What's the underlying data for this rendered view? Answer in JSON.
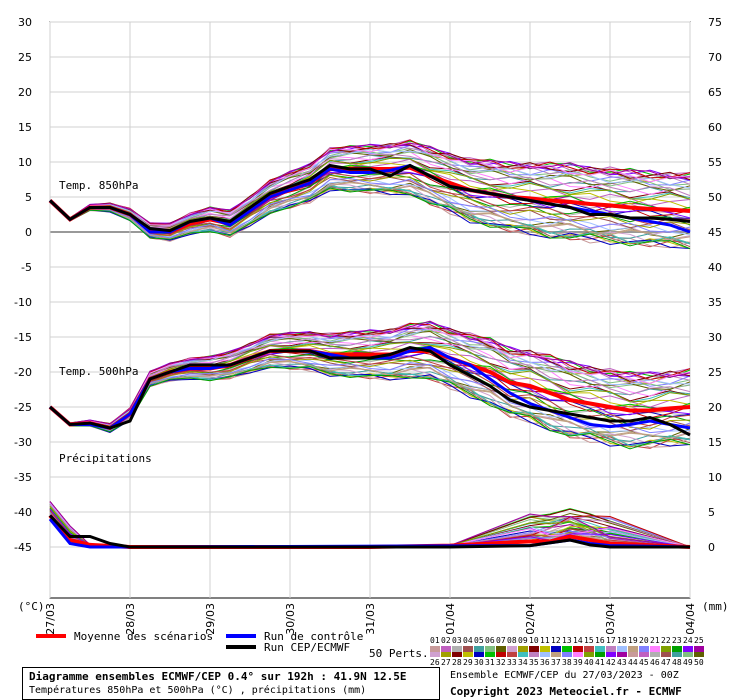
{
  "chart_data": {
    "type": "line",
    "left_axis": {
      "unit": "(°C)",
      "ticks": [
        30,
        25,
        20,
        15,
        10,
        5,
        0,
        -5,
        -10,
        -15,
        -20,
        -25,
        -30,
        -35,
        -40,
        -45
      ],
      "range": [
        -45,
        30
      ]
    },
    "right_axis": {
      "unit": "(mm)",
      "ticks": [
        75,
        70,
        65,
        60,
        55,
        50,
        45,
        40,
        35,
        30,
        25,
        20,
        15,
        10,
        5,
        0
      ]
    },
    "x_labels": [
      "27/03",
      "28/03",
      "29/03",
      "30/03",
      "31/03",
      "01/04",
      "02/04",
      "03/04",
      "04/04"
    ],
    "x_hours": [
      0,
      24,
      48,
      72,
      96,
      120,
      144,
      168,
      192
    ],
    "section_labels": [
      "Temp. 850hPa",
      "Temp. 500hPa",
      "Précipitations"
    ],
    "series": [
      {
        "name": "Moyenne des scénarios",
        "color": "#ff0000",
        "t850": [
          [
            0,
            4.5
          ],
          [
            6,
            1.8
          ],
          [
            12,
            3.5
          ],
          [
            18,
            3.5
          ],
          [
            24,
            2.5
          ],
          [
            30,
            0.2
          ],
          [
            36,
            0
          ],
          [
            42,
            1.2
          ],
          [
            48,
            1.8
          ],
          [
            54,
            1.2
          ],
          [
            60,
            3
          ],
          [
            66,
            5
          ],
          [
            72,
            6
          ],
          [
            78,
            7
          ],
          [
            84,
            9
          ],
          [
            90,
            9
          ],
          [
            96,
            9
          ],
          [
            102,
            9
          ],
          [
            108,
            9.2
          ],
          [
            114,
            8
          ],
          [
            120,
            7
          ],
          [
            126,
            6
          ],
          [
            132,
            5.5
          ],
          [
            138,
            5
          ],
          [
            144,
            4.8
          ],
          [
            150,
            4.5
          ],
          [
            156,
            4.3
          ],
          [
            162,
            4
          ],
          [
            168,
            3.8
          ],
          [
            174,
            3.5
          ],
          [
            180,
            3.3
          ],
          [
            186,
            3.2
          ],
          [
            192,
            3
          ]
        ],
        "t500": [
          [
            0,
            -25
          ],
          [
            6,
            -27.5
          ],
          [
            12,
            -27.3
          ],
          [
            18,
            -28
          ],
          [
            24,
            -26
          ],
          [
            30,
            -21
          ],
          [
            36,
            -20
          ],
          [
            42,
            -19.5
          ],
          [
            48,
            -19.5
          ],
          [
            54,
            -19
          ],
          [
            60,
            -18
          ],
          [
            66,
            -17
          ],
          [
            72,
            -17
          ],
          [
            78,
            -17
          ],
          [
            84,
            -17.5
          ],
          [
            90,
            -17.5
          ],
          [
            96,
            -17.5
          ],
          [
            102,
            -17.5
          ],
          [
            108,
            -17
          ],
          [
            114,
            -17
          ],
          [
            120,
            -18
          ],
          [
            126,
            -19
          ],
          [
            132,
            -20
          ],
          [
            138,
            -21.5
          ],
          [
            144,
            -22
          ],
          [
            150,
            -23
          ],
          [
            156,
            -24
          ],
          [
            162,
            -24.5
          ],
          [
            168,
            -25
          ],
          [
            174,
            -25.5
          ],
          [
            180,
            -25.5
          ],
          [
            186,
            -25.2
          ],
          [
            192,
            -25
          ]
        ],
        "precip": [
          [
            0,
            4.5
          ],
          [
            6,
            1
          ],
          [
            12,
            0.3
          ],
          [
            24,
            0
          ],
          [
            48,
            0
          ],
          [
            96,
            0
          ],
          [
            120,
            0.2
          ],
          [
            144,
            0.8
          ],
          [
            150,
            0.8
          ],
          [
            156,
            1.5
          ],
          [
            162,
            1
          ],
          [
            168,
            0.5
          ],
          [
            192,
            0
          ]
        ]
      },
      {
        "name": "Run de contrôle",
        "color": "#0000ff",
        "t850": [
          [
            0,
            4.5
          ],
          [
            6,
            1.8
          ],
          [
            12,
            3.5
          ],
          [
            18,
            3.5
          ],
          [
            24,
            2.5
          ],
          [
            30,
            0
          ],
          [
            36,
            0
          ],
          [
            42,
            1.5
          ],
          [
            48,
            2
          ],
          [
            54,
            1
          ],
          [
            60,
            3
          ],
          [
            66,
            5
          ],
          [
            72,
            6
          ],
          [
            78,
            7
          ],
          [
            84,
            9
          ],
          [
            90,
            8.5
          ],
          [
            96,
            8.5
          ],
          [
            102,
            8.8
          ],
          [
            108,
            9.5
          ],
          [
            114,
            8
          ],
          [
            120,
            6.5
          ],
          [
            126,
            6
          ],
          [
            132,
            5.5
          ],
          [
            138,
            5
          ],
          [
            144,
            4.5
          ],
          [
            150,
            4
          ],
          [
            156,
            3.5
          ],
          [
            162,
            3
          ],
          [
            168,
            2.5
          ],
          [
            174,
            2
          ],
          [
            180,
            1.5
          ],
          [
            186,
            1
          ],
          [
            192,
            0
          ]
        ],
        "t500": [
          [
            0,
            -25
          ],
          [
            6,
            -27.5
          ],
          [
            12,
            -27.5
          ],
          [
            18,
            -28
          ],
          [
            24,
            -26
          ],
          [
            30,
            -21
          ],
          [
            36,
            -20
          ],
          [
            42,
            -19.5
          ],
          [
            48,
            -19.5
          ],
          [
            54,
            -19
          ],
          [
            60,
            -18
          ],
          [
            66,
            -17
          ],
          [
            72,
            -17
          ],
          [
            78,
            -17
          ],
          [
            84,
            -17.5
          ],
          [
            90,
            -18
          ],
          [
            96,
            -18
          ],
          [
            102,
            -18
          ],
          [
            108,
            -17
          ],
          [
            114,
            -16.5
          ],
          [
            120,
            -18
          ],
          [
            126,
            -19
          ],
          [
            132,
            -21
          ],
          [
            138,
            -23
          ],
          [
            144,
            -24.5
          ],
          [
            150,
            -25.5
          ],
          [
            156,
            -26.5
          ],
          [
            162,
            -27.5
          ],
          [
            168,
            -27.8
          ],
          [
            174,
            -27.5
          ],
          [
            180,
            -27
          ],
          [
            186,
            -27.5
          ],
          [
            192,
            -28
          ]
        ],
        "precip": [
          [
            0,
            4
          ],
          [
            6,
            0.5
          ],
          [
            12,
            0
          ],
          [
            24,
            0
          ],
          [
            144,
            0.2
          ],
          [
            156,
            1
          ],
          [
            162,
            0.5
          ],
          [
            168,
            0.2
          ],
          [
            192,
            0
          ]
        ]
      },
      {
        "name": "Run CEP/ECMWF",
        "color": "#000000",
        "t850": [
          [
            0,
            4.5
          ],
          [
            6,
            1.8
          ],
          [
            12,
            3.5
          ],
          [
            18,
            3.5
          ],
          [
            24,
            2.5
          ],
          [
            30,
            0.5
          ],
          [
            36,
            0.2
          ],
          [
            42,
            1.5
          ],
          [
            48,
            2
          ],
          [
            54,
            1.5
          ],
          [
            60,
            3.5
          ],
          [
            66,
            5.5
          ],
          [
            72,
            6.5
          ],
          [
            78,
            7.5
          ],
          [
            84,
            9.5
          ],
          [
            90,
            9
          ],
          [
            96,
            9
          ],
          [
            102,
            8
          ],
          [
            108,
            9.5
          ],
          [
            114,
            8
          ],
          [
            120,
            6.5
          ],
          [
            126,
            6
          ],
          [
            132,
            5.5
          ],
          [
            138,
            5
          ],
          [
            144,
            4.5
          ],
          [
            150,
            4
          ],
          [
            156,
            3.5
          ],
          [
            162,
            2.5
          ],
          [
            168,
            2.5
          ],
          [
            174,
            2
          ],
          [
            180,
            2
          ],
          [
            186,
            1.8
          ],
          [
            192,
            1.5
          ]
        ],
        "t500": [
          [
            0,
            -25
          ],
          [
            6,
            -27.5
          ],
          [
            12,
            -27.3
          ],
          [
            18,
            -28
          ],
          [
            24,
            -27
          ],
          [
            30,
            -21
          ],
          [
            36,
            -20
          ],
          [
            42,
            -19
          ],
          [
            48,
            -19
          ],
          [
            54,
            -19
          ],
          [
            60,
            -18
          ],
          [
            66,
            -17
          ],
          [
            72,
            -17
          ],
          [
            78,
            -17
          ],
          [
            84,
            -18
          ],
          [
            90,
            -18
          ],
          [
            96,
            -18
          ],
          [
            102,
            -17.5
          ],
          [
            108,
            -16.5
          ],
          [
            114,
            -17
          ],
          [
            120,
            -19
          ],
          [
            126,
            -20.5
          ],
          [
            132,
            -22
          ],
          [
            138,
            -24
          ],
          [
            144,
            -25
          ],
          [
            150,
            -25.5
          ],
          [
            156,
            -26
          ],
          [
            162,
            -26.5
          ],
          [
            168,
            -27
          ],
          [
            174,
            -27
          ],
          [
            180,
            -26.5
          ],
          [
            186,
            -27.5
          ],
          [
            192,
            -29
          ]
        ],
        "precip": [
          [
            0,
            4.5
          ],
          [
            6,
            1.5
          ],
          [
            12,
            1.5
          ],
          [
            18,
            0.5
          ],
          [
            24,
            0
          ],
          [
            96,
            0
          ],
          [
            120,
            0
          ],
          [
            144,
            0.2
          ],
          [
            156,
            1
          ],
          [
            162,
            0.3
          ],
          [
            168,
            0
          ],
          [
            192,
            0
          ]
        ]
      }
    ],
    "grid": true
  },
  "legend": {
    "mean": "Moyenne des scénarios",
    "control": "Run de contrôle",
    "ecmwf": "Run CEP/ECMWF",
    "perts_label": "50 Perts."
  },
  "perts_colors": [
    "#c89a9a",
    "#c060c0",
    "#b0b0b0",
    "#a05050",
    "#40a0a0",
    "#80c080",
    "#606000",
    "#d0a0d0",
    "#a0a000",
    "#800000",
    "#c0c000",
    "#0000c0",
    "#00c000",
    "#c00000",
    "#c04040",
    "#40c0c0",
    "#c080c0",
    "#a0c0ff",
    "#c0a080",
    "#8080ff",
    "#ff80ff",
    "#80a000",
    "#00a000",
    "#8000ff",
    "#a000a0"
  ],
  "perts_row1": [
    "01",
    "02",
    "03",
    "04",
    "05",
    "06",
    "07",
    "08",
    "09",
    "10",
    "11",
    "12",
    "13",
    "14",
    "15",
    "16",
    "17",
    "18",
    "19",
    "20",
    "21",
    "22",
    "23",
    "24",
    "25"
  ],
  "perts_row2": [
    "26",
    "27",
    "28",
    "29",
    "30",
    "31",
    "32",
    "33",
    "34",
    "35",
    "36",
    "37",
    "38",
    "39",
    "40",
    "41",
    "42",
    "43",
    "44",
    "45",
    "46",
    "47",
    "48",
    "49",
    "50"
  ],
  "footer": {
    "title": "Diagramme ensembles ECMWF/CEP 0.4° sur 192h : 41.9N 12.5E",
    "subtitle": "Températures 850hPa et 500hPa (°C) , précipitations (mm)",
    "run_info": "Ensemble ECMWF/CEP du 27/03/2023 - 00Z",
    "copyright": "Copyright 2023 Meteociel.fr - ECMWF"
  }
}
